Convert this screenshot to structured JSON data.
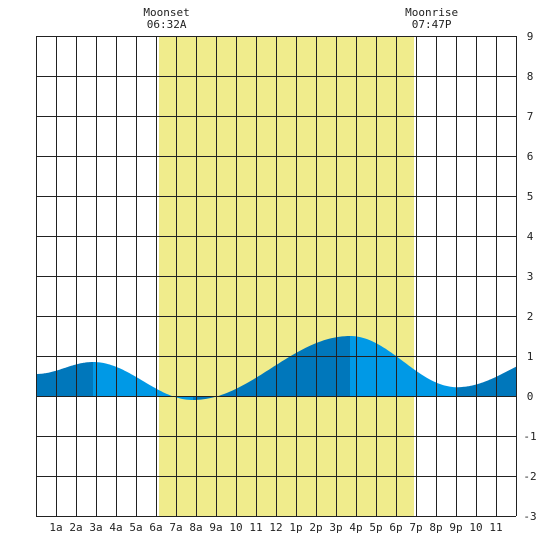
{
  "chart_data": {
    "type": "area",
    "x_unit": "hour of day",
    "xlim": [
      0,
      24
    ],
    "ylim": [
      -3,
      9
    ],
    "y_ticks": [
      9,
      8,
      7,
      6,
      5,
      4,
      3,
      2,
      1,
      0,
      -1,
      -2,
      -3
    ],
    "x_ticks": [
      {
        "x": 1,
        "label": "1a"
      },
      {
        "x": 2,
        "label": "2a"
      },
      {
        "x": 3,
        "label": "3a"
      },
      {
        "x": 4,
        "label": "4a"
      },
      {
        "x": 5,
        "label": "5a"
      },
      {
        "x": 6,
        "label": "6a"
      },
      {
        "x": 7,
        "label": "7a"
      },
      {
        "x": 8,
        "label": "8a"
      },
      {
        "x": 9,
        "label": "9a"
      },
      {
        "x": 10,
        "label": "10"
      },
      {
        "x": 11,
        "label": "11"
      },
      {
        "x": 12,
        "label": "12"
      },
      {
        "x": 13,
        "label": "1p"
      },
      {
        "x": 14,
        "label": "2p"
      },
      {
        "x": 15,
        "label": "3p"
      },
      {
        "x": 16,
        "label": "4p"
      },
      {
        "x": 17,
        "label": "5p"
      },
      {
        "x": 18,
        "label": "6p"
      },
      {
        "x": 19,
        "label": "7p"
      },
      {
        "x": 20,
        "label": "8p"
      },
      {
        "x": 21,
        "label": "9p"
      },
      {
        "x": 22,
        "label": "10"
      },
      {
        "x": 23,
        "label": "11"
      }
    ],
    "daylight": {
      "start": 6.15,
      "end": 18.9
    },
    "annotations": [
      {
        "title": "Moonset",
        "time": "06:32A",
        "x": 6.53
      },
      {
        "title": "Moonrise",
        "time": "07:47P",
        "x": 19.78
      }
    ],
    "tide_extremes": [
      {
        "x": 2.85,
        "y": 0.85
      },
      {
        "x": 7.85,
        "y": -0.1
      },
      {
        "x": 15.7,
        "y": 1.5
      },
      {
        "x": 21.05,
        "y": 0.22
      },
      {
        "x": 26.4,
        "y": 1.1
      }
    ],
    "tide_start": {
      "x": 0,
      "y": 0.55
    },
    "colors": {
      "daylight": "#f0ec8c",
      "tide_light": "#0099e6",
      "tide_dark": "#0077bb",
      "grid": "#222222",
      "background": "#ffffff"
    }
  }
}
